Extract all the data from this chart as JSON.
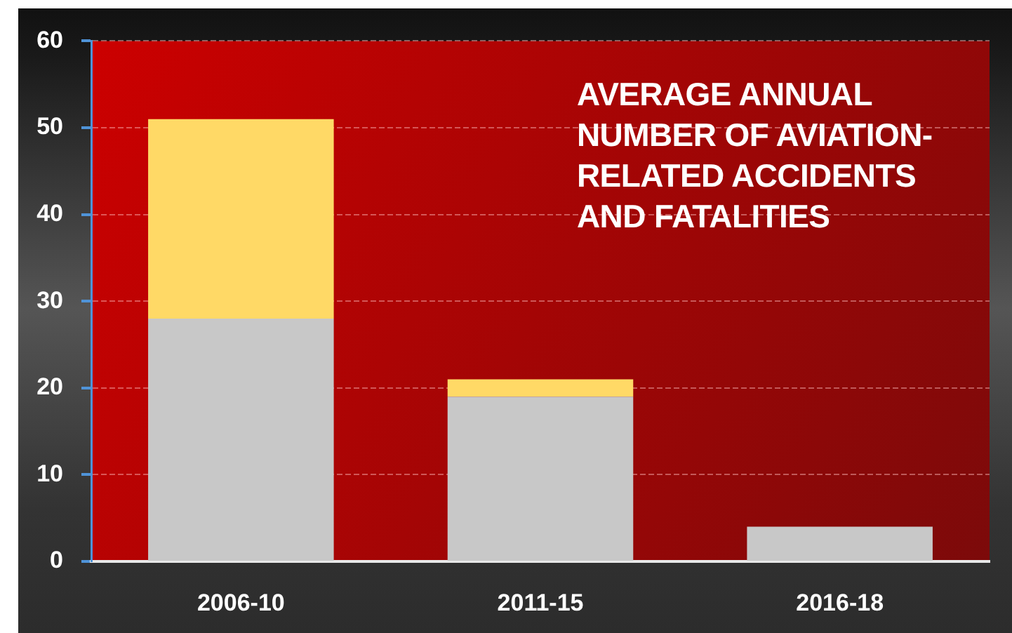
{
  "chart_data": {
    "type": "bar",
    "title": "AVERAGE ANNUAL NUMBER OF AVIATION-RELATED ACCIDENTS AND FATALITIES",
    "categories": [
      "2006-10",
      "2011-15",
      "2016-18"
    ],
    "stacked": true,
    "series": [
      {
        "color": "#c8c8c8",
        "values": [
          28,
          19,
          4
        ]
      },
      {
        "color": "#ffd966",
        "values": [
          23,
          2,
          null
        ]
      }
    ],
    "ylim": [
      0,
      60
    ],
    "yticks": [
      0,
      10,
      20,
      30,
      40,
      50,
      60
    ],
    "grid": "y",
    "legend": false
  }
}
